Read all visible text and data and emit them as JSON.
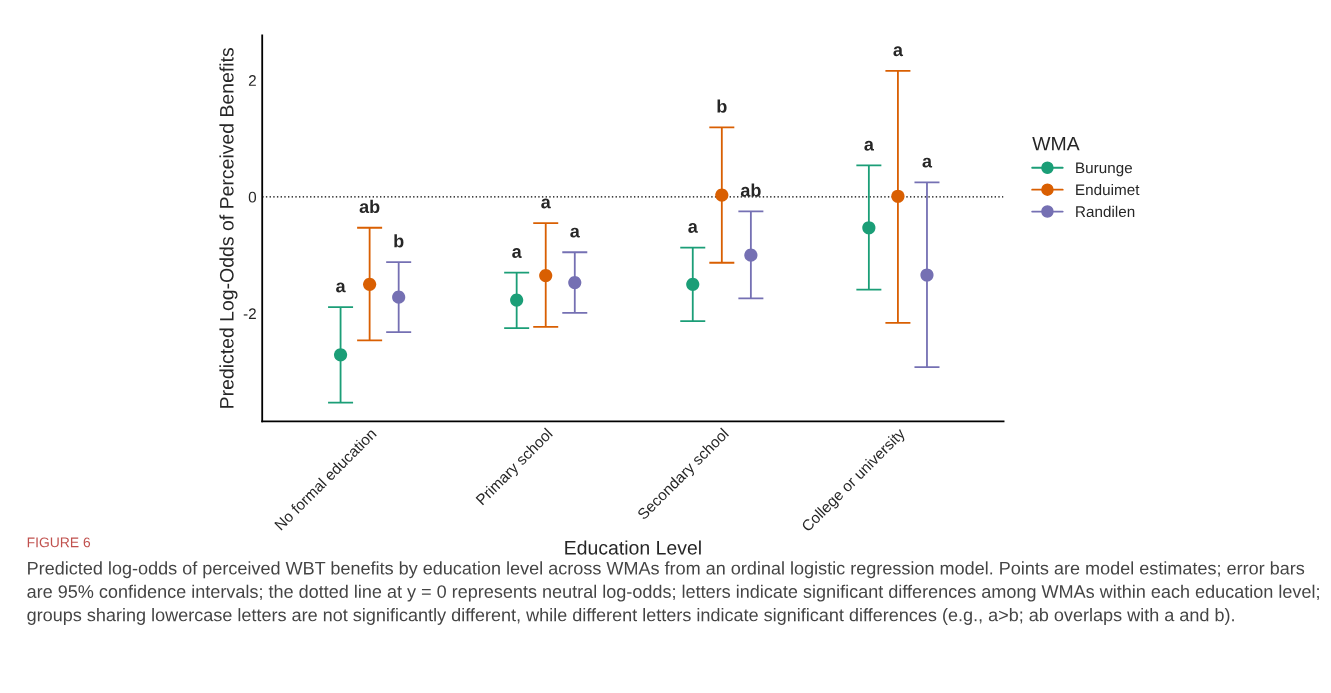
{
  "chart_data": {
    "type": "scatter",
    "xlabel": "Education Level",
    "ylabel": "Predicted Log-Odds of Perceived Benefits",
    "legend_title": "WMA",
    "categories": [
      "No formal education",
      "Primary school",
      "Secondary school",
      "College or university"
    ],
    "series": [
      {
        "name": "Burunge",
        "color": "#1b9e77",
        "values": [
          -2.71,
          -1.77,
          -1.5,
          -0.53
        ],
        "errors": [
          [
            -3.53,
            -1.89
          ],
          [
            -2.25,
            -1.3
          ],
          [
            -2.13,
            -0.87
          ],
          [
            -1.59,
            0.54
          ]
        ]
      },
      {
        "name": "Enduimet",
        "color": "#d95f02",
        "values": [
          -1.5,
          -1.35,
          0.03,
          0.01
        ],
        "errors": [
          [
            -2.46,
            -0.53
          ],
          [
            -2.23,
            -0.45
          ],
          [
            -1.13,
            1.19
          ],
          [
            -2.16,
            2.16
          ]
        ]
      },
      {
        "name": "Randilen",
        "color": "#7570b3",
        "values": [
          -1.72,
          -1.47,
          -1.0,
          -1.34
        ],
        "errors": [
          [
            -2.32,
            -1.12
          ],
          [
            -1.99,
            -0.95
          ],
          [
            -1.74,
            -0.25
          ],
          [
            -2.92,
            0.25
          ]
        ]
      }
    ],
    "ylim": [
      -3.85,
      2.77
    ],
    "yticks": [
      {
        "value": -2,
        "label": "-2"
      },
      0,
      2
    ],
    "ref_lines": [
      {
        "axis": "y",
        "value": 0,
        "line_style": "dotted",
        "color": "#000000"
      }
    ],
    "marker": "circle",
    "legend": "right",
    "grid": false,
    "annotations": [
      {
        "text": "a",
        "x": "No formal education",
        "y": -1.89
      },
      {
        "text": "ab",
        "x": "No formal education",
        "y": -0.53
      },
      {
        "text": "b",
        "x": "No formal education",
        "y": -1.12
      },
      {
        "text": "a",
        "x": "Primary school",
        "y": -1.3
      },
      {
        "text": "a",
        "x": "Primary school",
        "y": -0.45
      },
      {
        "text": "a",
        "x": "Primary school",
        "y": -0.95
      },
      {
        "text": "a",
        "x": "Secondary school",
        "y": -0.87
      },
      {
        "text": "b",
        "x": "Secondary school",
        "y": 1.19
      },
      {
        "text": "ab",
        "x": "Secondary school",
        "y": -0.25
      },
      {
        "text": "a",
        "x": "College or university",
        "y": 0.54
      },
      {
        "text": "a",
        "x": "College or university",
        "y": 2.16
      },
      {
        "text": "a",
        "x": "College or university",
        "y": 0.25
      },
      "FIGURE 6",
      "Predicted log-odds of perceived WBT benefits by education level across WMAs from an ordinal logistic regression model. Points are model estimates; error bars are 95% confidence intervals; the dotted line at y = 0 represents neutral log-odds; letters indicate significant differences among WMAs within each education level; groups sharing lowercase letters are not significantly different, while different letters indicate significant differences (e.g., a>b; ab overlaps with a and b)."
    ]
  }
}
